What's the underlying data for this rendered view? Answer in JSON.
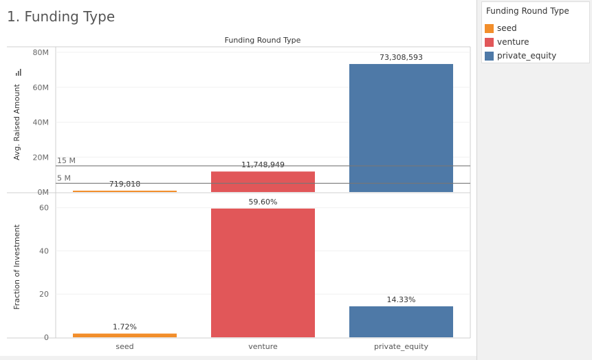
{
  "dashboard": {
    "title": "1. Funding Type"
  },
  "legend": {
    "title": "Funding Round Type",
    "items": [
      {
        "label": "seed",
        "color": "#f28e2b"
      },
      {
        "label": "venture",
        "color": "#e15759"
      },
      {
        "label": "private_equity",
        "color": "#4e79a7"
      }
    ]
  },
  "chart_data": {
    "type": "bar",
    "column_header": "Funding Round Type",
    "categories": [
      "seed",
      "venture",
      "private_equity"
    ],
    "colors": [
      "#f28e2b",
      "#e15759",
      "#4e79a7"
    ],
    "panes": [
      {
        "ylabel": "Avg. Raised Amount",
        "values": [
          719818,
          11748949,
          73308593
        ],
        "value_labels": [
          "719,818",
          "11,748,949",
          "73,308,593"
        ],
        "ylim": [
          0,
          80000000
        ],
        "ticks": [
          0,
          20000000,
          40000000,
          60000000,
          80000000
        ],
        "tick_labels": [
          "0M",
          "20M",
          "40M",
          "60M",
          "80M"
        ],
        "reference_lines": [
          {
            "label": "15 M",
            "value": 15000000
          },
          {
            "label": "5 M",
            "value": 5000000
          }
        ]
      },
      {
        "ylabel": "Fraction of Investment",
        "values": [
          1.72,
          59.6,
          14.33
        ],
        "value_labels": [
          "1.72%",
          "59.60%",
          "14.33%"
        ],
        "ylim": [
          0,
          65
        ],
        "ticks": [
          0,
          20,
          40,
          60
        ],
        "tick_labels": [
          "0",
          "20",
          "40",
          "60"
        ]
      }
    ]
  }
}
